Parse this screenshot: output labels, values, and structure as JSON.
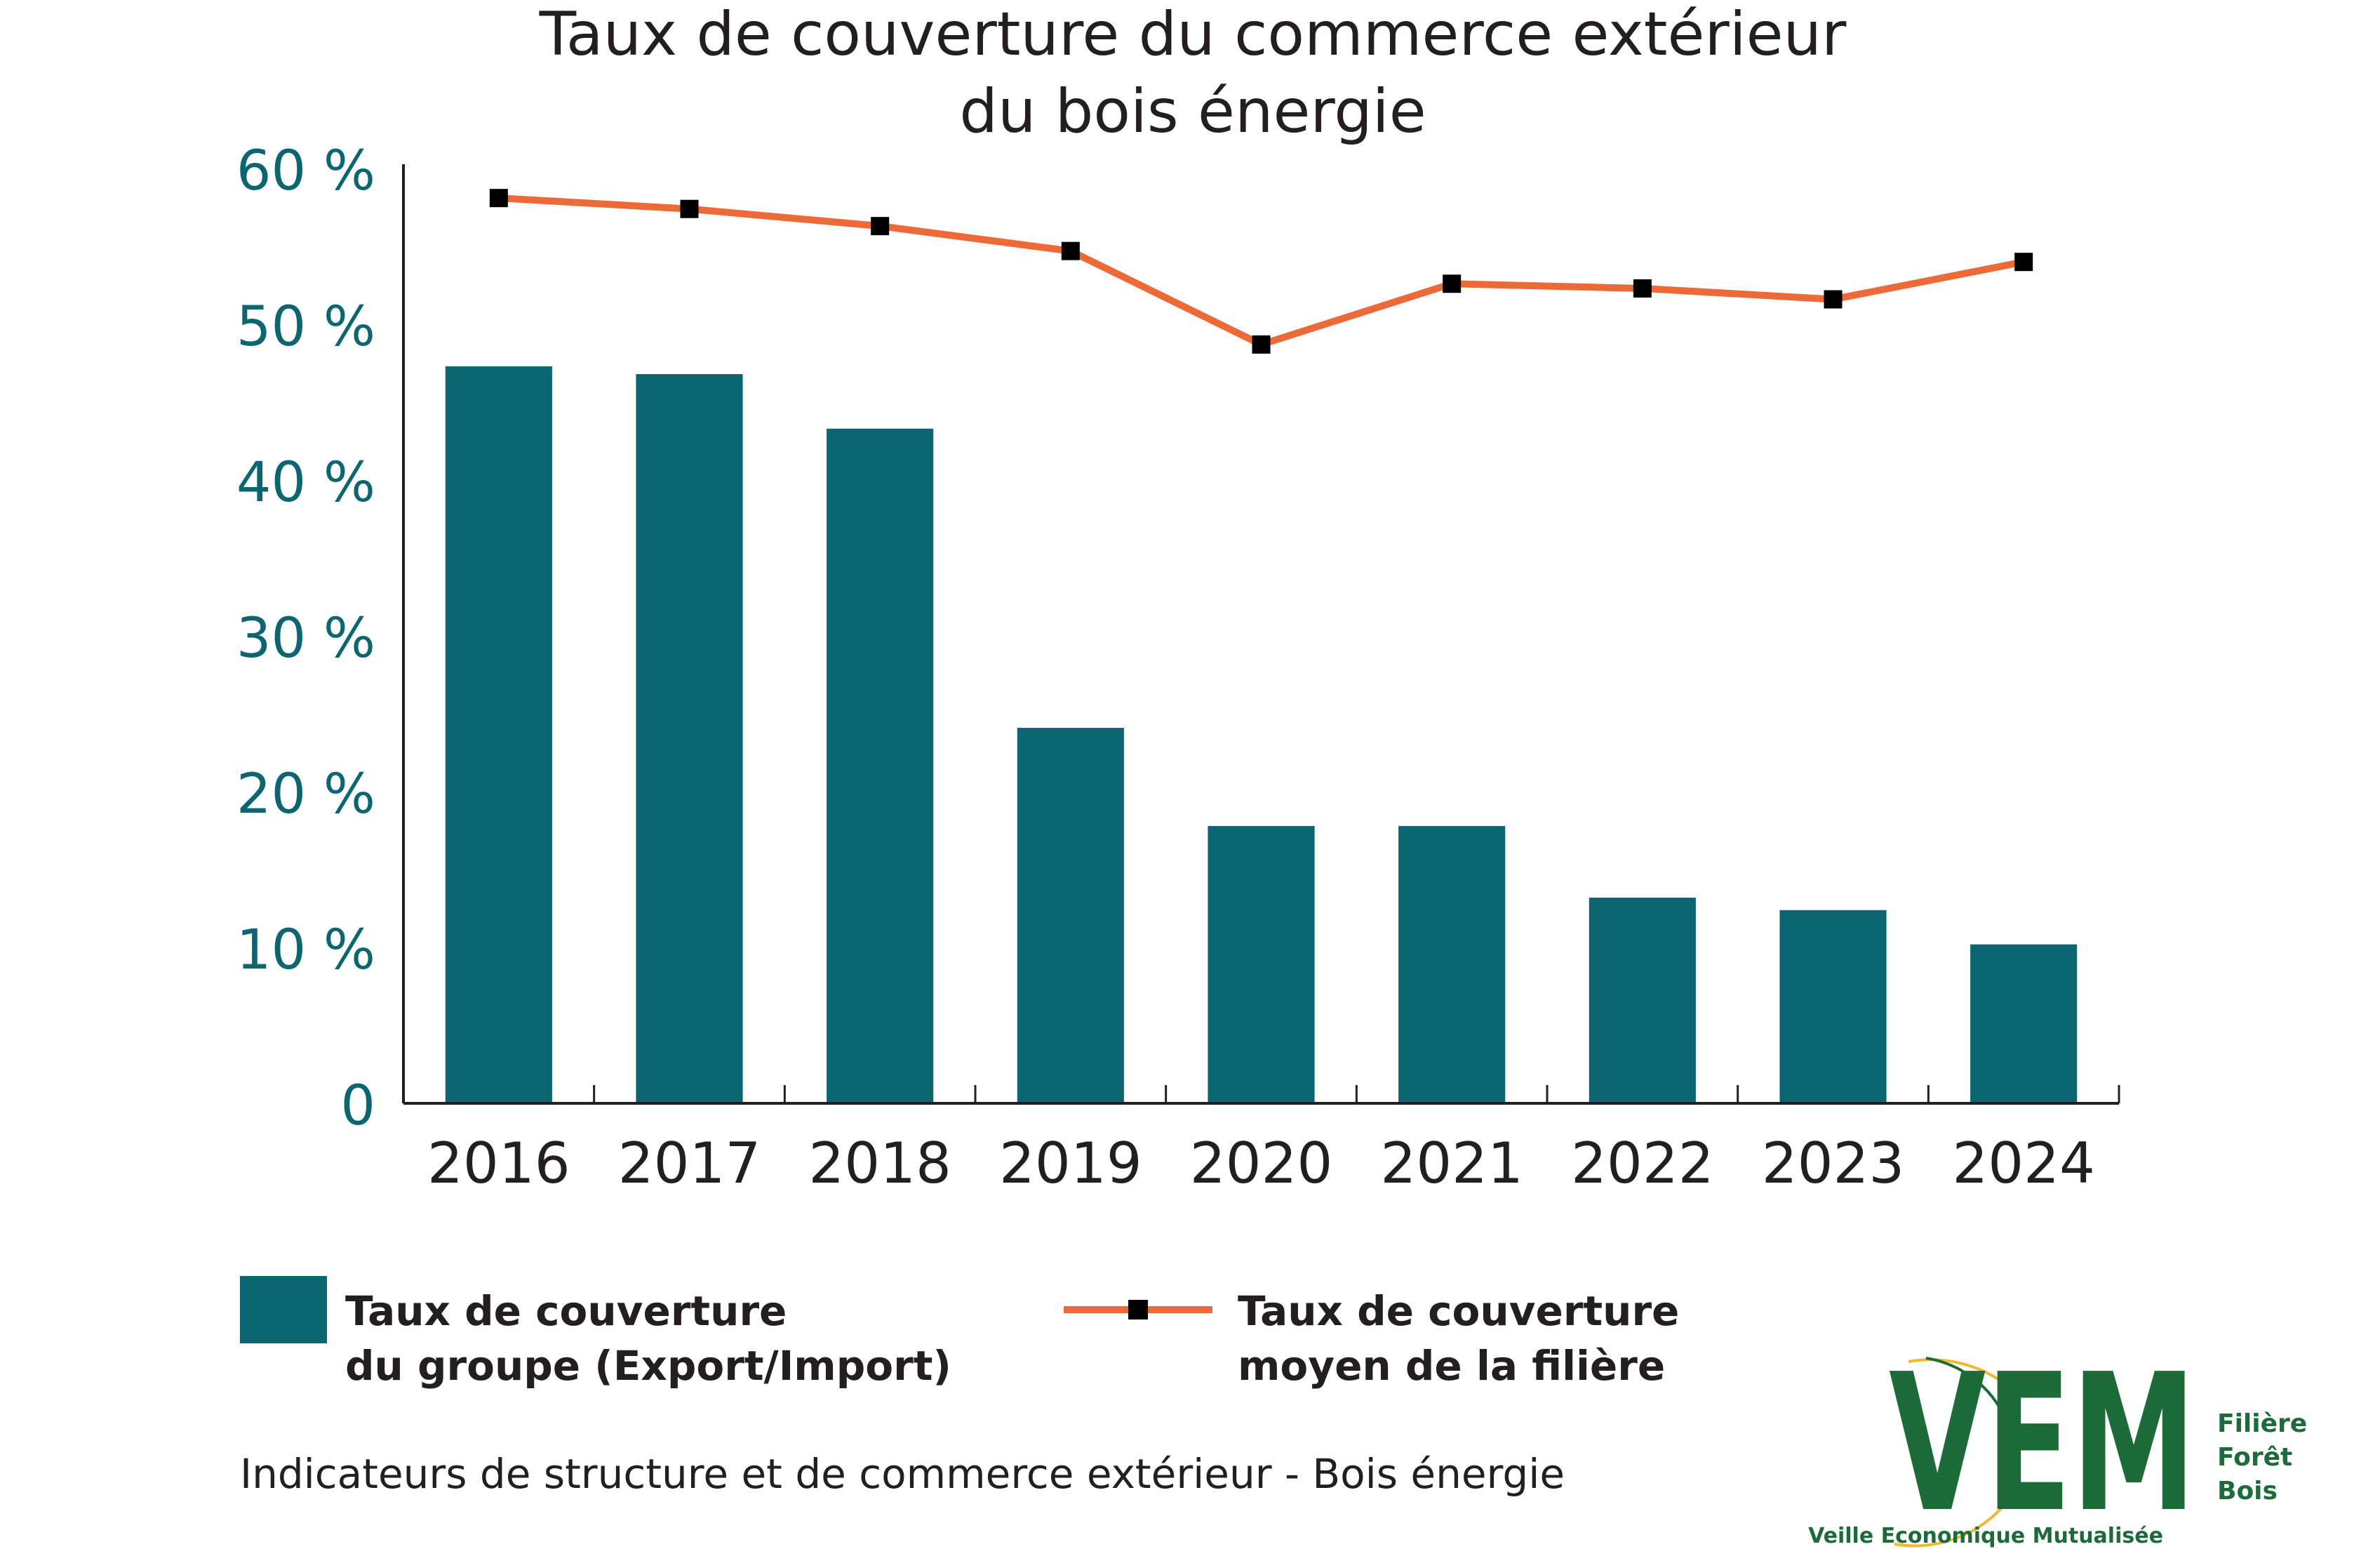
{
  "chart_data": {
    "type": "bar",
    "title_line1": "Taux de couverture du commerce extérieur",
    "title_line2": "du bois énergie",
    "categories": [
      "2016",
      "2017",
      "2018",
      "2019",
      "2020",
      "2021",
      "2022",
      "2023",
      "2024"
    ],
    "series": [
      {
        "name": "Taux de couverture du groupe (Export/Import)",
        "kind": "bar",
        "color": "#0b6672",
        "values": [
          47.3,
          46.8,
          43.3,
          24.1,
          17.8,
          17.8,
          13.2,
          12.4,
          10.2
        ]
      },
      {
        "name": "Taux de couverture moyen de la filière",
        "kind": "line",
        "color": "#ec6a37",
        "marker_color": "#000000",
        "values": [
          58.1,
          57.4,
          56.3,
          54.7,
          48.7,
          52.6,
          52.3,
          51.6,
          54.0
        ]
      }
    ],
    "ylim": [
      0,
      60
    ],
    "yticks": [
      "60 %",
      "50 %",
      "40 %",
      "30 %",
      "20 %",
      "10 %",
      "0"
    ],
    "ytick_values": [
      60,
      50,
      40,
      30,
      20,
      10,
      0
    ],
    "legend": {
      "bar_line1": "Taux de couverture",
      "bar_line2": "du groupe (Export/Import)",
      "line_line1": "Taux de couverture",
      "line_line2": "moyen de la filière",
      "placement": "bottom"
    },
    "source": "Indicateurs de structure et de commerce extérieur - Bois énergie",
    "grid": false
  },
  "logo": {
    "letters": "VEM",
    "line1": "Filière",
    "line2": "Forêt",
    "line3": "Bois",
    "tagline": "Veille Economique Mutualisée",
    "green": "#1e6b3a",
    "yellow": "#f0b82d"
  }
}
